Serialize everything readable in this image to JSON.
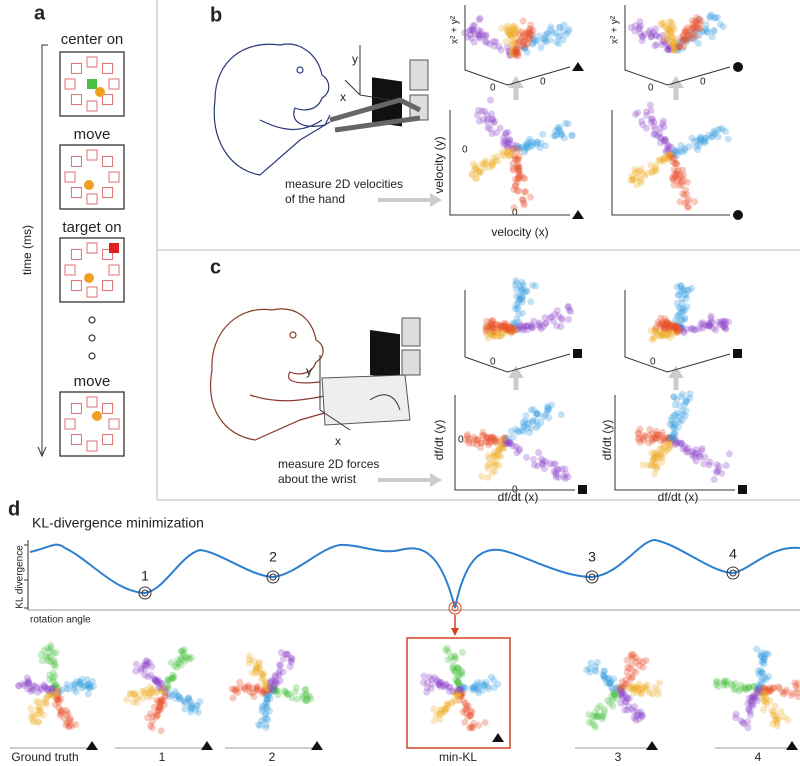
{
  "panel_labels": [
    "a",
    "b",
    "c",
    "d"
  ],
  "panel_a": {
    "steps": [
      "center on",
      "move",
      "target on",
      "move"
    ],
    "axis_label": "time (ms)"
  },
  "panel_b": {
    "apparatus_axes": [
      "y",
      "x"
    ],
    "caption_lines": [
      "measure 2D velocities",
      "of the hand"
    ],
    "y_label": "velocity (y)",
    "x_label": "velocity (x)",
    "z_label": "x² + y²",
    "zero": "0"
  },
  "panel_c": {
    "apparatus_axes": [
      "y",
      "x"
    ],
    "caption_lines": [
      "measure 2D forces",
      "about the wrist"
    ],
    "y_label": "df/dt (y)",
    "x_label": "df/dt (x)",
    "zero": "0"
  },
  "panel_d": {
    "title": "KL-divergence minimization",
    "y_label": "KL divergence",
    "x_label": "rotation angle",
    "minima_labels": [
      "1",
      "2",
      "3",
      "4"
    ],
    "panels": [
      "Ground truth",
      "1",
      "2",
      "min-KL",
      "3",
      "4"
    ]
  }
}
